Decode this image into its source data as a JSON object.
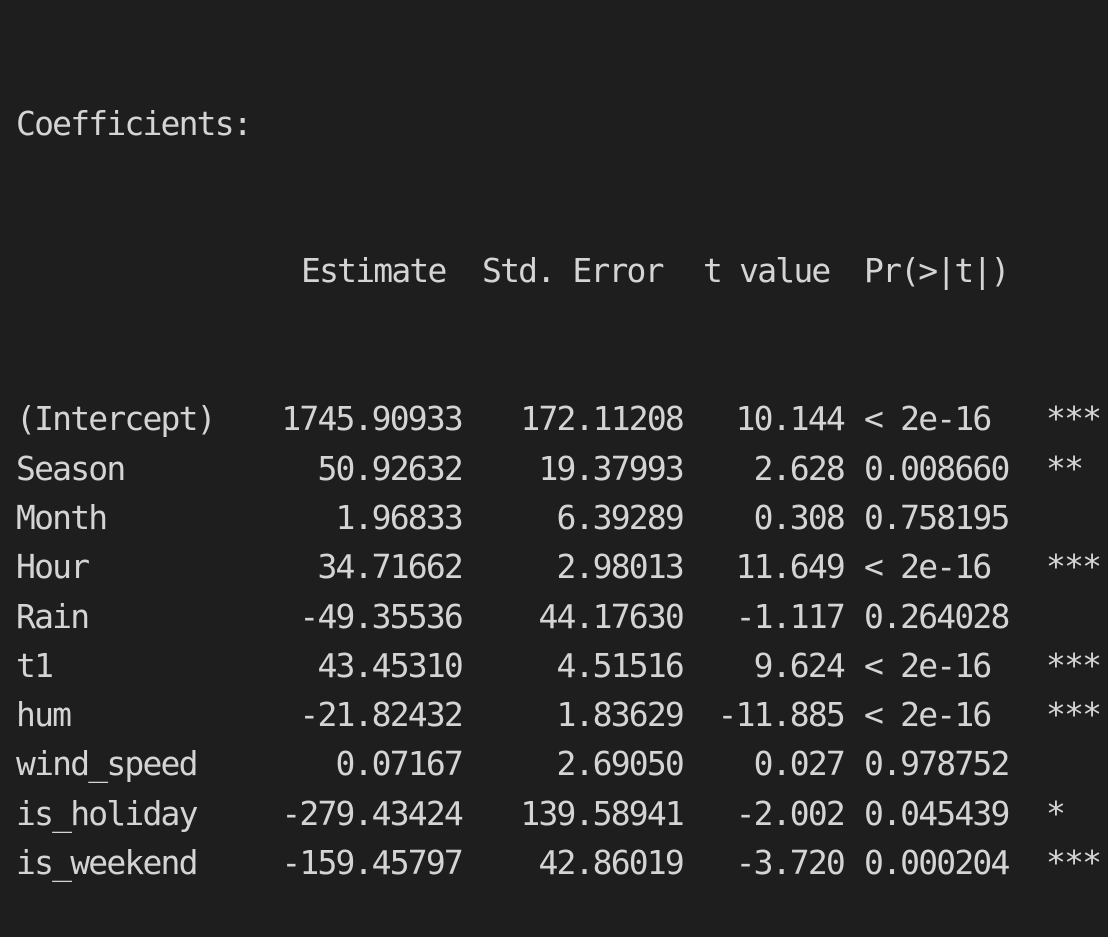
{
  "title": "Coefficients:",
  "headers": {
    "estimate": "Estimate",
    "std_error": "Std. Error",
    "t_value": "t value",
    "p_value": "Pr(>|t|)"
  },
  "rows": [
    {
      "name": "(Intercept)",
      "estimate": "1745.90933",
      "std_error": "172.11208",
      "t_value": "10.144",
      "p_value": "< 2e-16",
      "signif": "***"
    },
    {
      "name": "Season",
      "estimate": "50.92632",
      "std_error": "19.37993",
      "t_value": "2.628",
      "p_value": "0.008660",
      "signif": "**"
    },
    {
      "name": "Month",
      "estimate": "1.96833",
      "std_error": "6.39289",
      "t_value": "0.308",
      "p_value": "0.758195",
      "signif": ""
    },
    {
      "name": "Hour",
      "estimate": "34.71662",
      "std_error": "2.98013",
      "t_value": "11.649",
      "p_value": "< 2e-16",
      "signif": "***"
    },
    {
      "name": "Rain",
      "estimate": "-49.35536",
      "std_error": "44.17630",
      "t_value": "-1.117",
      "p_value": "0.264028",
      "signif": ""
    },
    {
      "name": "t1",
      "estimate": "43.45310",
      "std_error": "4.51516",
      "t_value": "9.624",
      "p_value": "< 2e-16",
      "signif": "***"
    },
    {
      "name": "hum",
      "estimate": "-21.82432",
      "std_error": "1.83629",
      "t_value": "-11.885",
      "p_value": "< 2e-16",
      "signif": "***"
    },
    {
      "name": "wind_speed",
      "estimate": "0.07167",
      "std_error": "2.69050",
      "t_value": "0.027",
      "p_value": "0.978752",
      "signif": ""
    },
    {
      "name": "is_holiday",
      "estimate": "-279.43424",
      "std_error": "139.58941",
      "t_value": "-2.002",
      "p_value": "0.045439",
      "signif": "*"
    },
    {
      "name": "is_weekend",
      "estimate": "-159.45797",
      "std_error": "42.86019",
      "t_value": "-3.720",
      "p_value": "0.000204",
      "signif": "***"
    }
  ]
}
